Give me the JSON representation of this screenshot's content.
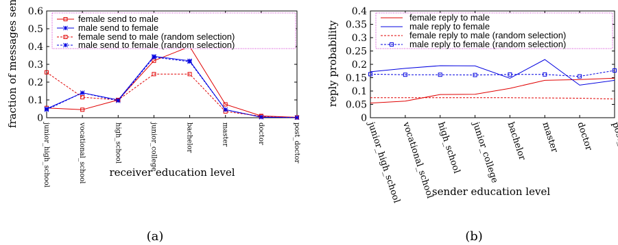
{
  "chart_data": [
    {
      "id": "a",
      "type": "line",
      "caption": "(a)",
      "xlabel": "receiver education level",
      "ylabel": "fraction of messages sent",
      "ylim": [
        0,
        0.6
      ],
      "yticks": [
        "0",
        "0.1",
        "0.2",
        "0.3",
        "0.4",
        "0.5",
        "0.6"
      ],
      "categories": [
        "junior_high_school",
        "vocational_school",
        "high_school",
        "junior_college",
        "bachelor",
        "master",
        "doctor",
        "post_doctor"
      ],
      "legend_position": "top",
      "series": [
        {
          "name": "female send to male",
          "color": "#e00000",
          "dash": "solid",
          "marker": "square",
          "values": [
            0.055,
            0.045,
            0.1,
            0.32,
            0.4,
            0.075,
            0.01,
            0.002
          ]
        },
        {
          "name": "male send to female",
          "color": "#0000e0",
          "dash": "solid",
          "marker": "star",
          "values": [
            0.05,
            0.14,
            0.1,
            0.345,
            0.32,
            0.045,
            0.003,
            0.001
          ]
        },
        {
          "name": "female send to male (random selection)",
          "color": "#e00000",
          "dash": "dashed",
          "marker": "square",
          "values": [
            0.255,
            0.115,
            0.1,
            0.245,
            0.245,
            0.035,
            0.008,
            0.002
          ]
        },
        {
          "name": "male send to female (random selection)",
          "color": "#0000e0",
          "dash": "dashed",
          "marker": "star",
          "values": [
            0.045,
            0.14,
            0.095,
            0.34,
            0.315,
            0.045,
            0.004,
            0.001
          ]
        }
      ]
    },
    {
      "id": "b",
      "type": "line",
      "caption": "(b)",
      "xlabel": "sender education level",
      "ylabel": "reply probability",
      "ylim": [
        0,
        0.4
      ],
      "yticks": [
        "0",
        "0.05",
        "0.1",
        "0.15",
        "0.2",
        "0.25",
        "0.3",
        "0.35",
        "0.4"
      ],
      "categories": [
        "junior_high_school",
        "vocational_school",
        "high_school",
        "junior_college",
        "bachelor",
        "master",
        "doctor",
        "post_doctor"
      ],
      "legend_position": "top",
      "series": [
        {
          "name": "female reply to male",
          "color": "#e00000",
          "dash": "solid",
          "marker": "none",
          "values": [
            0.055,
            0.062,
            0.087,
            0.088,
            0.11,
            0.14,
            0.143,
            0.148
          ]
        },
        {
          "name": "male reply to female",
          "color": "#0000e0",
          "dash": "solid",
          "marker": "none",
          "values": [
            0.172,
            0.185,
            0.195,
            0.194,
            0.148,
            0.218,
            0.122,
            0.14
          ]
        },
        {
          "name": "female reply to male (random selection)",
          "color": "#e00000",
          "dash": "dashed",
          "marker": "none",
          "values": [
            0.075,
            0.075,
            0.075,
            0.075,
            0.075,
            0.074,
            0.073,
            0.07
          ]
        },
        {
          "name": "male reply to female (random selection)",
          "color": "#0000e0",
          "dash": "dashed",
          "marker": "square",
          "values": [
            0.163,
            0.161,
            0.161,
            0.16,
            0.162,
            0.162,
            0.155,
            0.177
          ]
        }
      ]
    }
  ]
}
